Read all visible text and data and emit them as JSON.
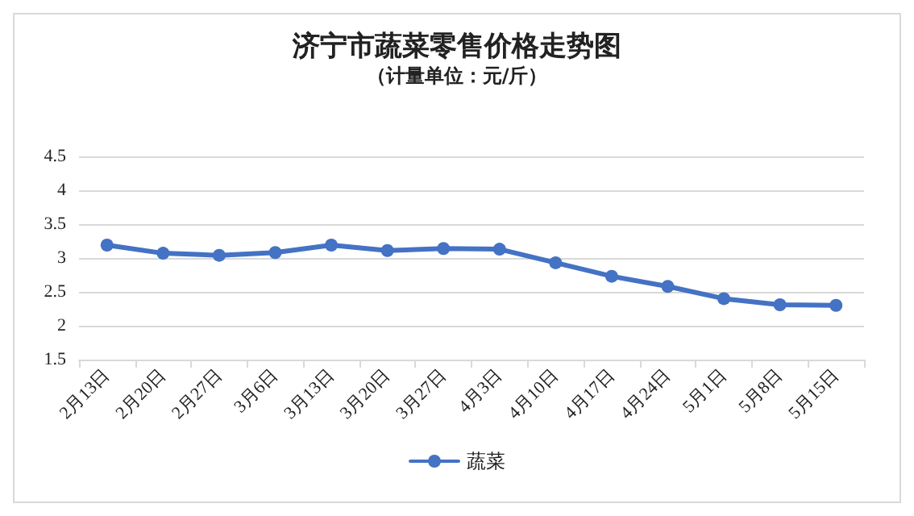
{
  "chart_data": {
    "type": "line",
    "title": "济宁市蔬菜零售价格走势图",
    "subtitle": "（计量单位：元/斤）",
    "categories": [
      "2月13日",
      "2月20日",
      "2月27日",
      "3月6日",
      "3月13日",
      "3月20日",
      "3月27日",
      "4月3日",
      "4月10日",
      "4月17日",
      "4月24日",
      "5月1日",
      "5月8日",
      "5月15日"
    ],
    "series": [
      {
        "name": "蔬菜",
        "color": "#4472c4",
        "values": [
          3.19,
          3.07,
          3.04,
          3.08,
          3.19,
          3.11,
          3.14,
          3.13,
          2.93,
          2.73,
          2.58,
          2.4,
          2.31,
          2.3
        ]
      }
    ],
    "ylim": [
      1.5,
      4.5
    ],
    "yticks": [
      1.5,
      2,
      2.5,
      3,
      3.5,
      4,
      4.5
    ],
    "grid": "y",
    "legend": "bottom",
    "marker": "circle",
    "line_style": "solid"
  }
}
